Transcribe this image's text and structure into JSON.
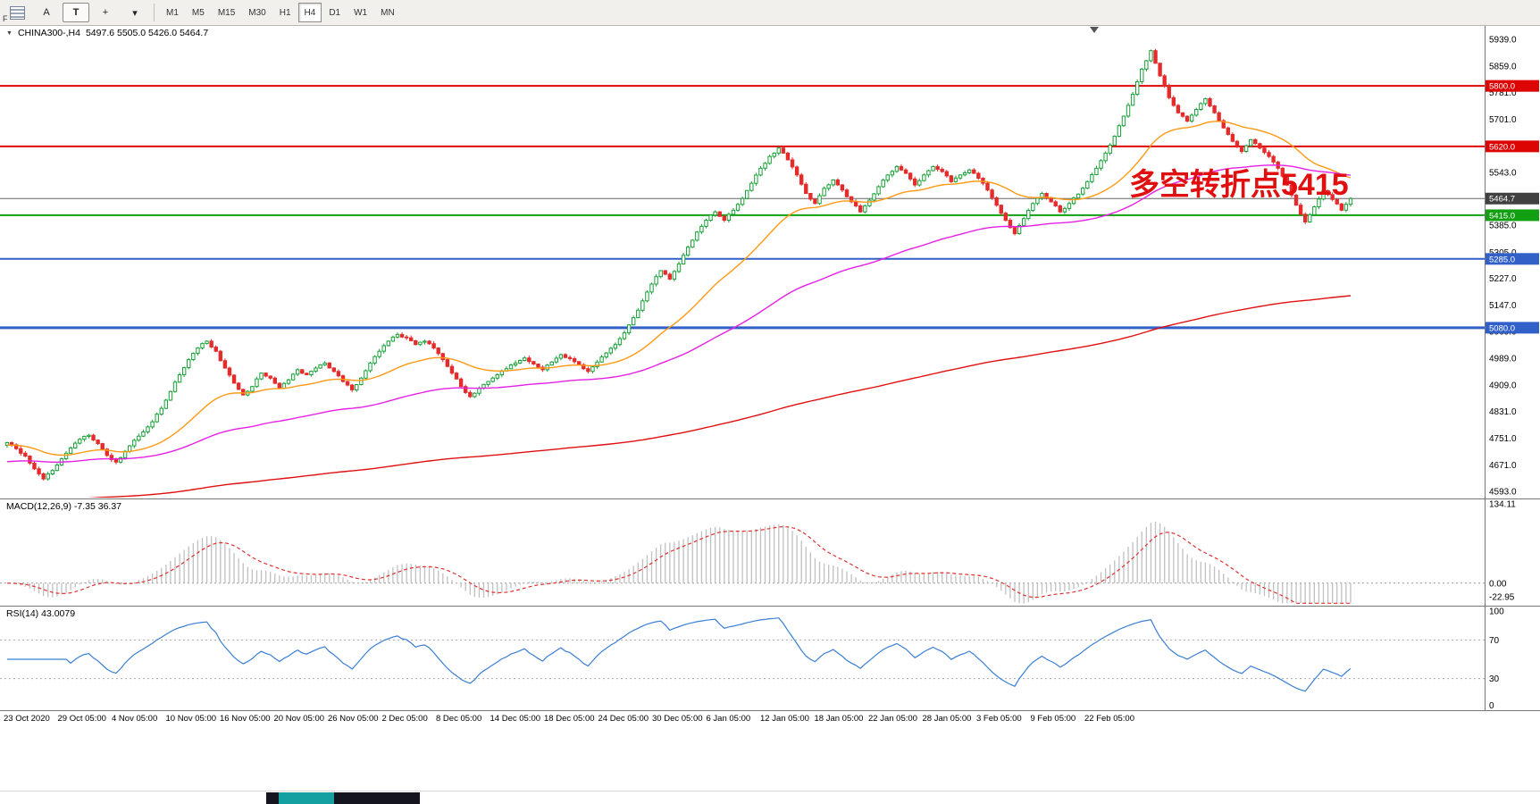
{
  "toolbar": {
    "f_label": "F",
    "tool_a": "A",
    "tool_t": "T",
    "timeframes": [
      "M1",
      "M5",
      "M15",
      "M30",
      "H1",
      "H4",
      "D1",
      "W1",
      "MN"
    ],
    "active_timeframe": "H4"
  },
  "icons": {
    "collapse_triangle": "▼",
    "crosshair": "+",
    "dropdown_caret": "▾"
  },
  "header": {
    "symbol_period": "CHINA300-,H4",
    "ohlc": "5497.6 5505.0 5426.0 5464.7"
  },
  "annotation": {
    "text": "多空转折点5415",
    "color": "#e01010"
  },
  "chart_data": {
    "type": "candlestick",
    "symbol": "CHINA300-",
    "timeframe": "H4",
    "current_bar": {
      "open": 5497.6,
      "high": 5505.0,
      "low": 5426.0,
      "close": 5464.7
    },
    "current_price": 5464.7,
    "y_range": [
      4577,
      5976
    ],
    "y_axis_ticks": [
      5939,
      5859,
      5781,
      5701,
      5621,
      5543,
      5463,
      5385,
      5305,
      5227,
      5147,
      5069,
      4989,
      4909,
      4831,
      4751,
      4671,
      4593
    ],
    "x_labels": [
      "23 Oct 2020",
      "29 Oct 05:00",
      "4 Nov 05:00",
      "10 Nov 05:00",
      "16 Nov 05:00",
      "20 Nov 05:00",
      "26 Nov 05:00",
      "2 Dec 05:00",
      "8 Dec 05:00",
      "14 Dec 05:00",
      "18 Dec 05:00",
      "24 Dec 05:00",
      "30 Dec 05:00",
      "6 Jan 05:00",
      "12 Jan 05:00",
      "18 Jan 05:00",
      "22 Jan 05:00",
      "28 Jan 05:00",
      "3 Feb 05:00",
      "9 Feb 05:00",
      "22 Feb 05:00"
    ],
    "colors": {
      "up": "#18a038",
      "down": "#e52b2b"
    },
    "levels": [
      {
        "price": 5800.0,
        "color": "#dd0404",
        "width": 2
      },
      {
        "price": 5620.0,
        "color": "#dd0404",
        "width": 2
      },
      {
        "price": 5415.0,
        "color": "#12a012",
        "width": 2
      },
      {
        "price": 5285.0,
        "color": "#3060c8",
        "width": 2
      },
      {
        "price": 5080.0,
        "color": "#3060c8",
        "width": 3
      }
    ],
    "closes": [
      4738,
      4720,
      4698,
      4660,
      4630,
      4655,
      4690,
      4722,
      4748,
      4760,
      4735,
      4700,
      4680,
      4712,
      4745,
      4770,
      4800,
      4840,
      4890,
      4940,
      4985,
      5020,
      5040,
      5010,
      4960,
      4915,
      4880,
      4905,
      4945,
      4930,
      4900,
      4925,
      4955,
      4940,
      4960,
      4975,
      4950,
      4920,
      4895,
      4930,
      4975,
      5010,
      5040,
      5060,
      5050,
      5030,
      5040,
      5020,
      4985,
      4945,
      4905,
      4875,
      4900,
      4920,
      4940,
      4958,
      4975,
      4990,
      4972,
      4955,
      4978,
      5000,
      4988,
      4970,
      4950,
      4978,
      5005,
      5030,
      5065,
      5110,
      5160,
      5210,
      5250,
      5225,
      5270,
      5320,
      5365,
      5400,
      5425,
      5400,
      5430,
      5465,
      5510,
      5555,
      5590,
      5615,
      5580,
      5535,
      5480,
      5450,
      5495,
      5520,
      5490,
      5455,
      5425,
      5460,
      5500,
      5535,
      5560,
      5540,
      5505,
      5535,
      5560,
      5545,
      5515,
      5535,
      5550,
      5525,
      5490,
      5445,
      5400,
      5360,
      5405,
      5450,
      5480,
      5455,
      5425,
      5450,
      5478,
      5515,
      5555,
      5600,
      5650,
      5710,
      5775,
      5850,
      5905,
      5830,
      5765,
      5720,
      5695,
      5730,
      5762,
      5720,
      5675,
      5635,
      5605,
      5640,
      5615,
      5590,
      5555,
      5505,
      5445,
      5395,
      5440,
      5488,
      5462,
      5430,
      5464.7
    ],
    "moving_averages": [
      {
        "name": "fast-ma",
        "color": "#ff9914",
        "seed": 4730,
        "alpha": 0.06
      },
      {
        "name": "mid-ma",
        "color": "#e520e5",
        "seed": 4680,
        "alpha": 0.02
      },
      {
        "name": "slow-ma",
        "color": "#e01010",
        "seed": 4560,
        "alpha": 0.005
      }
    ],
    "macd": {
      "name": "MACD(12,26,9)",
      "values_text": "-7.35 36.37",
      "fast": 12,
      "slow": 26,
      "signal": 9,
      "axis": [
        134.11,
        0.0,
        -22.95
      ],
      "range": [
        -35,
        140
      ],
      "histogram_color": "#c0c0c0",
      "signal_color": "#e03030"
    },
    "rsi": {
      "name": "RSI(14)",
      "value_text": "43.0079",
      "period": 14,
      "levels": [
        70,
        30
      ],
      "axis": [
        100,
        70,
        30,
        0
      ],
      "color": "#3a7fd5"
    }
  }
}
